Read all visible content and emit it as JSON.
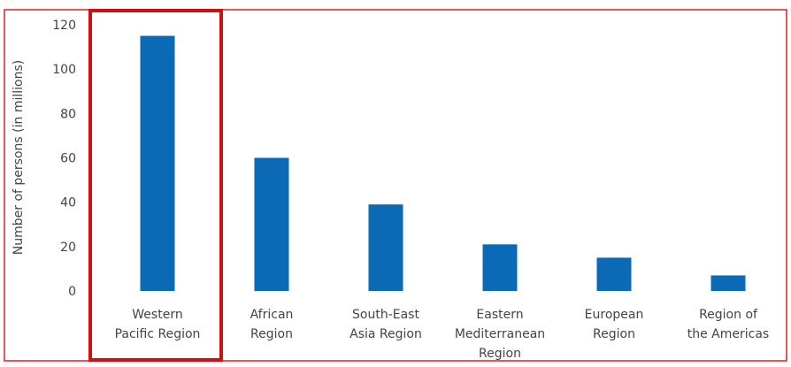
{
  "chart_data": {
    "type": "bar",
    "categories": [
      [
        "Western",
        "Pacific Region"
      ],
      [
        "African",
        "Region"
      ],
      [
        "South-East",
        "Asia Region"
      ],
      [
        "Eastern",
        "Mediterranean",
        "Region"
      ],
      [
        "European",
        "Region"
      ],
      [
        "Region of",
        "the Americas"
      ]
    ],
    "values": [
      115,
      60,
      39,
      21,
      15,
      7
    ],
    "ylabel": "Number of persons (in millions)",
    "ylim": [
      0,
      120
    ],
    "yticks": [
      0,
      20,
      40,
      60,
      80,
      100,
      120
    ],
    "grid": false,
    "highlighted_index": 0
  },
  "colors": {
    "bar": "#0a6ab5",
    "text": "#444444",
    "frame": "#e02020",
    "highlight": "#d01010"
  }
}
